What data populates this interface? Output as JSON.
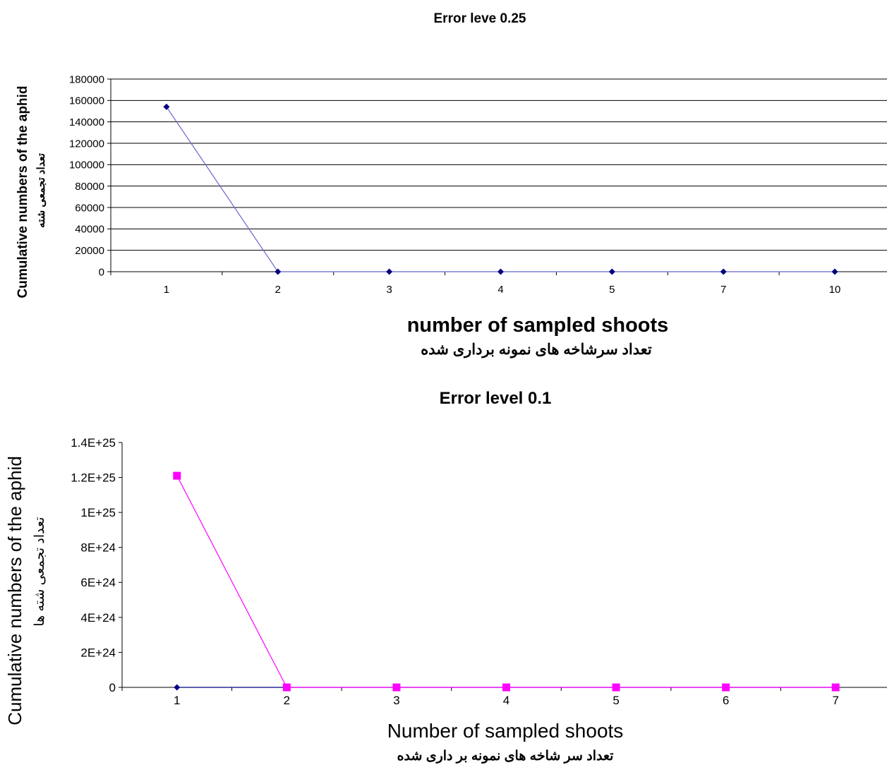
{
  "chart_data": [
    {
      "type": "line",
      "title": "Error leve 0.25",
      "xlabel": "number of sampled shoots",
      "xlabel_fa": "تعداد سرشاخه های نمونه برداری شده",
      "ylabel": "Cumulative numbers of the aphid",
      "ylabel_fa": "تعداد تجمعی شته",
      "categories": [
        "1",
        "2",
        "3",
        "4",
        "5",
        "7",
        "10"
      ],
      "ylim": [
        0,
        180000
      ],
      "yticks": [
        "0",
        "20000",
        "40000",
        "60000",
        "80000",
        "100000",
        "120000",
        "140000",
        "160000",
        "180000"
      ],
      "grid": true,
      "series": [
        {
          "values": [
            154000,
            0,
            0,
            0,
            0,
            0,
            0
          ],
          "color": "#6666cc",
          "marker": "diamond",
          "marker_color": "#000080"
        }
      ]
    },
    {
      "type": "line",
      "title": "Error level 0.1",
      "xlabel": "Number of sampled shoots",
      "xlabel_fa": "تعداد سر شاخه های نمونه بر داری شده",
      "ylabel": "Cumulative numbers of the aphid",
      "ylabel_fa": "تعداد تجمعی شته ها",
      "categories": [
        "1",
        "2",
        "3",
        "4",
        "5",
        "6",
        "7"
      ],
      "ylim": [
        0,
        1.4e+25
      ],
      "yticks": [
        "0",
        "2E+24",
        "4E+24",
        "6E+24",
        "8E+24",
        "1E+25",
        "1.2E+25",
        "1.4E+25"
      ],
      "grid": false,
      "series": [
        {
          "values": [
            0,
            0,
            0,
            0,
            0,
            0,
            0
          ],
          "color": "#000080",
          "marker": "diamond",
          "marker_color": "#000080"
        },
        {
          "values": [
            1.21e+25,
            0,
            0,
            0,
            0,
            0,
            0
          ],
          "color": "#ff00ff",
          "marker": "square",
          "marker_color": "#ff00ff"
        }
      ]
    }
  ]
}
